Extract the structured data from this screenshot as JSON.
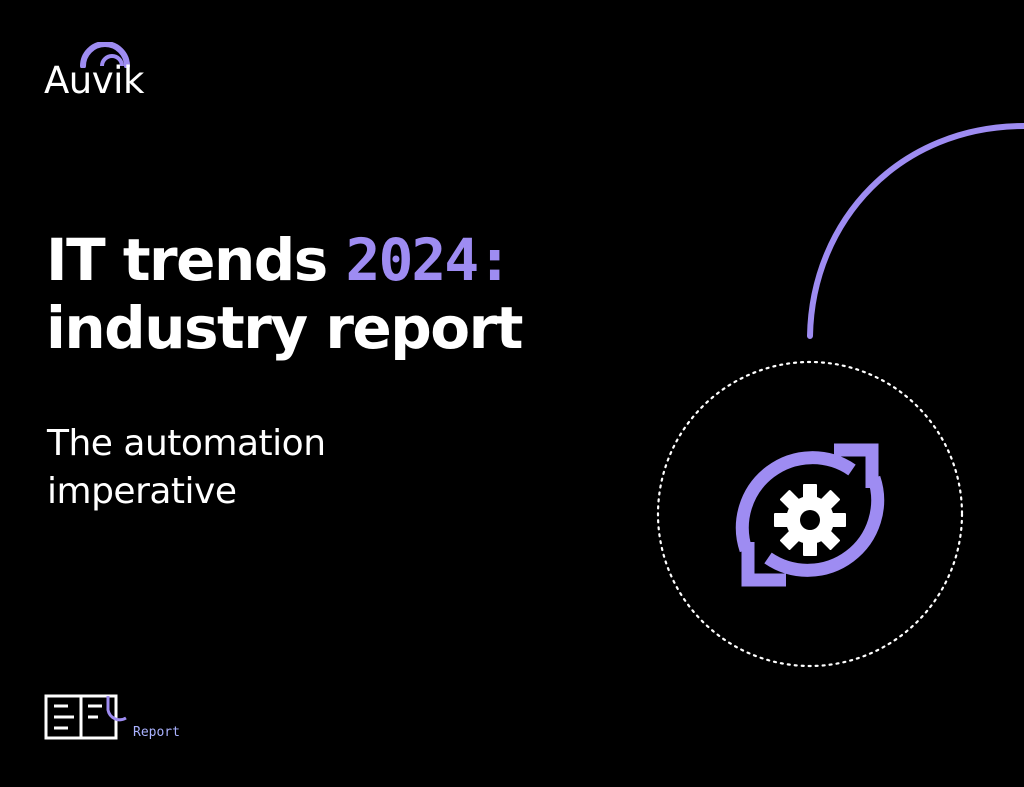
{
  "brand": {
    "logo_text": "Auvik"
  },
  "cover": {
    "title_line1_prefix": "IT trends ",
    "title_line1_accent": "2024:",
    "title_line2": "industry report",
    "subtitle": "The automation imperative"
  },
  "document_type": {
    "label": "Report",
    "icon": "open-book-icon"
  },
  "illustration": {
    "icon": "automation-gear-cycle-icon"
  },
  "colors": {
    "background": "#000000",
    "accent_purple": "#9e8cf2",
    "text": "#ffffff",
    "label_blue": "#aab2ff"
  }
}
